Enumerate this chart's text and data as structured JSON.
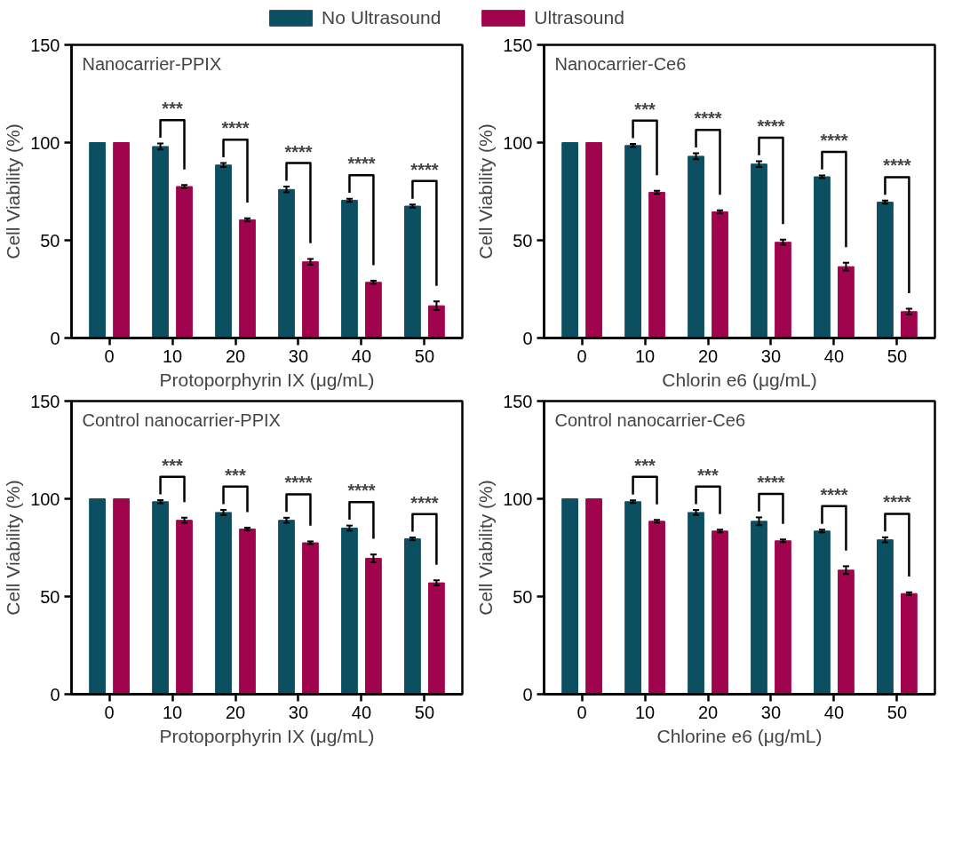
{
  "chart_data": [
    {
      "type": "bar",
      "title": "Nanocarrier-PPIX",
      "xlabel": "Protoporphyrin IX (μg/mL)",
      "ylabel": "Cell Viability (%)",
      "categories": [
        "0",
        "10",
        "20",
        "30",
        "40",
        "50"
      ],
      "ylim": [
        0,
        150
      ],
      "yticks": [
        0,
        50,
        100,
        150
      ],
      "legend": "top",
      "series": [
        {
          "name": "No Ultrasound",
          "color": "#0b4f60",
          "values": [
            100,
            98,
            88.5,
            76,
            70.5,
            67.5
          ],
          "errors": [
            null,
            1.5,
            1,
            1.5,
            0.8,
            0.8
          ]
        },
        {
          "name": "Ultrasound",
          "color": "#a0044c",
          "values": [
            100,
            77.5,
            60.5,
            39,
            28.5,
            16.5
          ],
          "errors": [
            null,
            0.8,
            0.8,
            1.5,
            0.8,
            2.2
          ]
        }
      ],
      "annotations": [
        "***",
        "****",
        "****",
        "****",
        "****"
      ]
    },
    {
      "type": "bar",
      "title": "Nanocarrier-Ce6",
      "xlabel": "Chlorin e6 (μg/mL)",
      "ylabel": "Cell Viability (%)",
      "categories": [
        "0",
        "10",
        "20",
        "30",
        "40",
        "50"
      ],
      "ylim": [
        0,
        150
      ],
      "yticks": [
        0,
        50,
        100,
        150
      ],
      "series": [
        {
          "color": "#0b4f60",
          "values": [
            100,
            98.5,
            93,
            89,
            82.5,
            69.5
          ],
          "errors": [
            null,
            0.8,
            1.5,
            1.5,
            0.7,
            0.8
          ]
        },
        {
          "color": "#a0044c",
          "values": [
            100,
            74.5,
            64.5,
            49,
            36.5,
            13.5
          ],
          "errors": [
            null,
            0.8,
            0.8,
            1.3,
            2,
            1.5
          ]
        }
      ],
      "annotations": [
        "***",
        "****",
        "****",
        "****",
        "****"
      ]
    },
    {
      "type": "bar",
      "title": "Control nanocarrier-PPIX",
      "xlabel": "Protoporphyrin IX (μg/mL)",
      "ylabel": "Cell Viability (%)",
      "categories": [
        "0",
        "10",
        "20",
        "30",
        "40",
        "50"
      ],
      "ylim": [
        0,
        150
      ],
      "yticks": [
        0,
        50,
        100,
        150
      ],
      "series": [
        {
          "color": "#0b4f60",
          "values": [
            100,
            98.5,
            93,
            89,
            85,
            79.5
          ],
          "errors": [
            null,
            0.8,
            1.3,
            1.3,
            1.3,
            0.7
          ]
        },
        {
          "color": "#a0044c",
          "values": [
            100,
            89,
            84.5,
            77.5,
            69.5,
            57
          ],
          "errors": [
            null,
            1.3,
            0.7,
            0.7,
            2,
            1.3
          ]
        }
      ],
      "annotations": [
        "***",
        "***",
        "****",
        "****",
        "****"
      ]
    },
    {
      "type": "bar",
      "title": "Control nanocarrier-Ce6",
      "xlabel": "Chlorine e6 (μg/mL)",
      "ylabel": "Cell Viability (%)",
      "categories": [
        "0",
        "10",
        "20",
        "30",
        "40",
        "50"
      ],
      "ylim": [
        0,
        150
      ],
      "yticks": [
        0,
        50,
        100,
        150
      ],
      "series": [
        {
          "color": "#0b4f60",
          "values": [
            100,
            98.5,
            93,
            88.5,
            83.5,
            79
          ],
          "errors": [
            null,
            0.7,
            1.3,
            2,
            0.7,
            1.3
          ]
        },
        {
          "color": "#a0044c",
          "values": [
            100,
            88.5,
            83.5,
            78.5,
            63.5,
            51.5
          ],
          "errors": [
            null,
            0.7,
            0.7,
            0.7,
            2,
            0.7
          ]
        }
      ],
      "annotations": [
        "***",
        "***",
        "****",
        "****",
        "****"
      ]
    }
  ]
}
